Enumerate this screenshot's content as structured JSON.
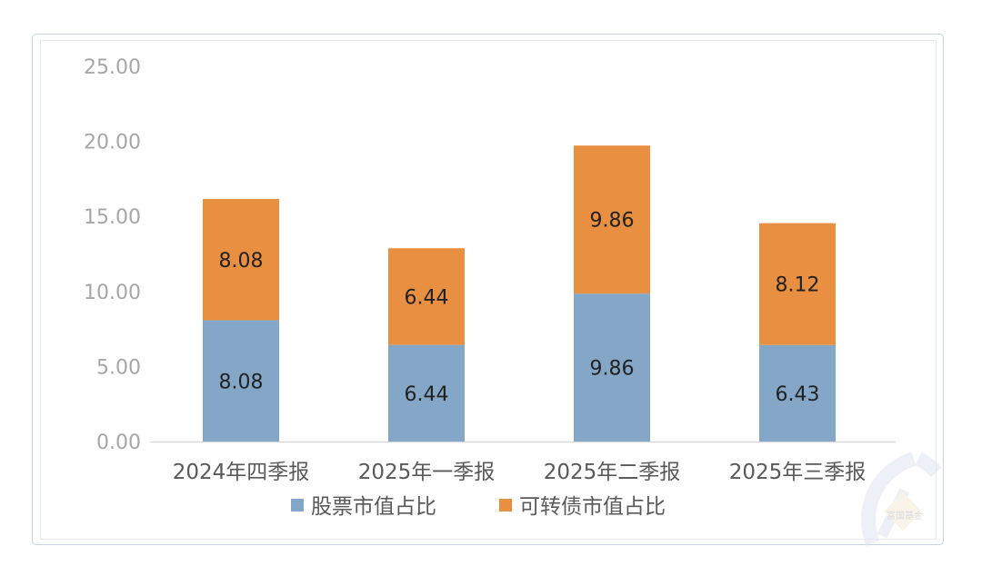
{
  "chart_data": {
    "type": "bar",
    "stacked": true,
    "title": "",
    "xlabel": "",
    "ylabel": "",
    "categories": [
      "2024年四季报",
      "2025年一季报",
      "2025年二季报",
      "2025年三季报"
    ],
    "series": [
      {
        "name": "股票市值占比",
        "values": [
          8.08,
          6.44,
          9.86,
          6.43
        ],
        "labels": [
          "8.08",
          "6.44",
          "9.86",
          "6.43"
        ],
        "color": "#84a7c7"
      },
      {
        "name": "可转债市值占比",
        "values": [
          8.08,
          6.44,
          9.86,
          8.12
        ],
        "labels": [
          "8.08",
          "6.44",
          "9.86",
          "8.12"
        ],
        "color": "#e98f42"
      }
    ],
    "ylim": [
      0,
      25
    ],
    "yticks": [
      0,
      5,
      10,
      15,
      20,
      25
    ],
    "ytick_labels": [
      "0.00",
      "5.00",
      "10.00",
      "15.00",
      "20.00",
      "25.00"
    ],
    "grid": false,
    "legend": "bottom"
  },
  "watermark": {
    "text": "富国基金"
  }
}
